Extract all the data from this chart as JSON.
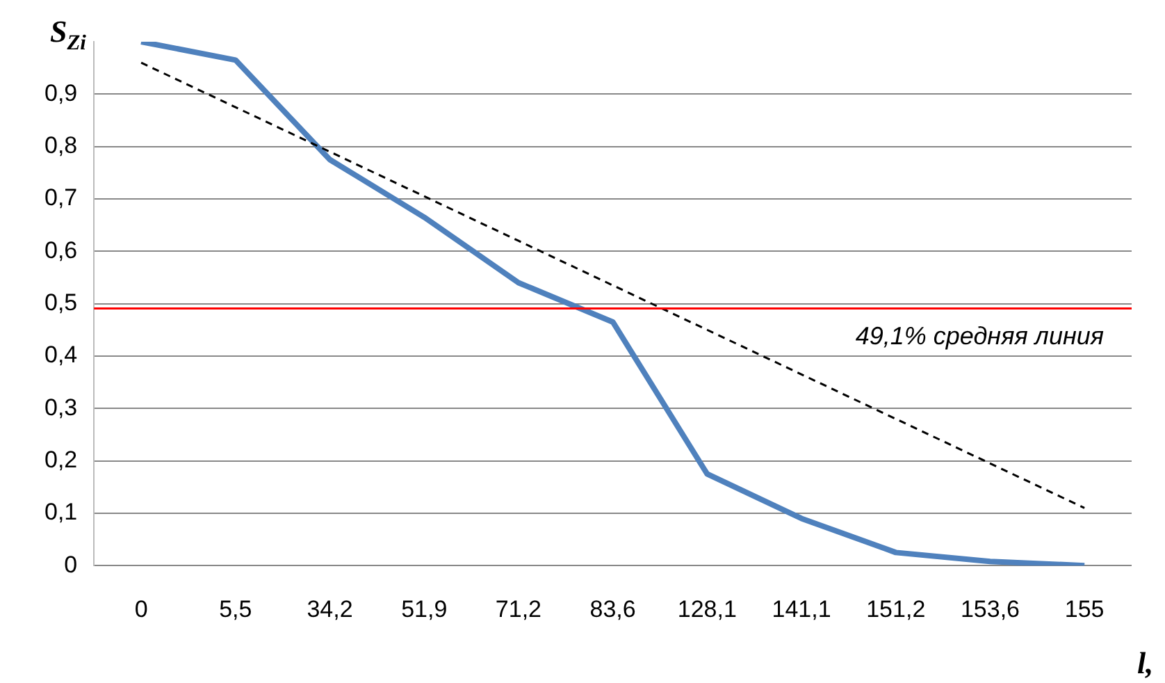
{
  "chart_data": {
    "type": "line",
    "ylabel": "S$_{Zi}$",
    "xlabel": "l,",
    "categories": [
      "0",
      "5,5",
      "34,2",
      "51,9",
      "71,2",
      "83,6",
      "128,1",
      "141,1",
      "151,2",
      "153,6",
      "155"
    ],
    "series": [
      {
        "color": "#4f81bd",
        "line_style": "solid",
        "values": [
          1.0,
          0.965,
          0.775,
          0.665,
          0.54,
          0.465,
          0.175,
          0.09,
          0.025,
          0.008,
          0.0
        ]
      },
      {
        "color": "#000000",
        "line_style": "dashed",
        "values": [
          0.96,
          0.875,
          0.79,
          0.705,
          0.62,
          0.535,
          0.45,
          0.365,
          0.28,
          0.195,
          0.11
        ]
      }
    ],
    "ylim": [
      0,
      1
    ],
    "yticks": [
      {
        "value": 0,
        "label": "0"
      },
      {
        "value": 0.1,
        "label": "0,1"
      },
      {
        "value": 0.2,
        "label": "0,2"
      },
      {
        "value": 0.3,
        "label": "0,3"
      },
      {
        "value": 0.4,
        "label": "0,4"
      },
      {
        "value": 0.5,
        "label": "0,5"
      },
      {
        "value": 0.6,
        "label": "0,6"
      },
      {
        "value": 0.7,
        "label": "0,7"
      },
      {
        "value": 0.8,
        "label": "0,8"
      },
      {
        "value": 0.9,
        "label": "0,9"
      }
    ],
    "ref_lines": [
      {
        "axis": "y",
        "value": 0.491,
        "label": "49,1% средняя линия",
        "color": "#ff0000"
      }
    ],
    "grid": "y",
    "legend": false,
    "marker": "none"
  }
}
